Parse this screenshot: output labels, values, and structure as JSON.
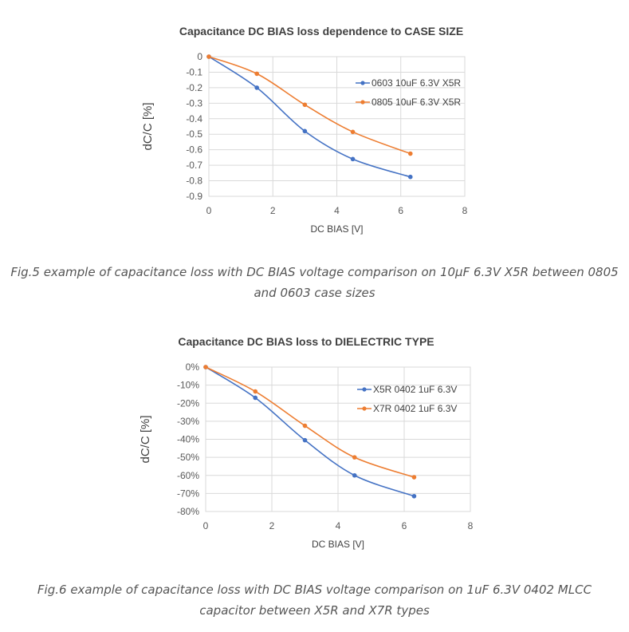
{
  "chart_data": [
    {
      "type": "line",
      "title": "Capacitance DC BIAS loss dependence to CASE SIZE",
      "xlabel": "DC BIAS [V]",
      "ylabel": "dC/C [%]",
      "xlim": [
        0,
        8
      ],
      "ylim": [
        -0.9,
        0
      ],
      "xticks": [
        "0",
        "2",
        "4",
        "6",
        "8"
      ],
      "yticks": [
        "0",
        "-0.1",
        "-0.2",
        "-0.3",
        "-0.4",
        "-0.5",
        "-0.6",
        "-0.7",
        "-0.8",
        "-0.9"
      ],
      "grid": true,
      "legend_position": "right",
      "series": [
        {
          "name": "0603 10uF 6.3V X5R",
          "color": "#4472C4",
          "x": [
            0,
            1.5,
            3,
            4.5,
            6.3
          ],
          "y": [
            0,
            -0.2,
            -0.48,
            -0.66,
            -0.775
          ]
        },
        {
          "name": "0805 10uF 6.3V X5R",
          "color": "#ED7D31",
          "x": [
            0,
            1.5,
            3,
            4.5,
            6.3
          ],
          "y": [
            0,
            -0.11,
            -0.31,
            -0.485,
            -0.625
          ]
        }
      ]
    },
    {
      "type": "line",
      "title": "Capacitance DC BIAS loss to DIELECTRIC TYPE",
      "xlabel": "DC BIAS [V]",
      "ylabel": "dC/C [%]",
      "xlim": [
        0,
        8
      ],
      "ylim": [
        -80,
        0
      ],
      "xticks": [
        "0",
        "2",
        "4",
        "6",
        "8"
      ],
      "yticks": [
        "0%",
        "-10%",
        "-20%",
        "-30%",
        "-40%",
        "-50%",
        "-60%",
        "-70%",
        "-80%"
      ],
      "grid": true,
      "legend_position": "right",
      "series": [
        {
          "name": "X5R 0402 1uF 6.3V",
          "color": "#4472C4",
          "x": [
            0,
            1.5,
            3,
            4.5,
            6.3
          ],
          "y": [
            0,
            -17,
            -40.5,
            -60,
            -71.5
          ]
        },
        {
          "name": "X7R 0402 1uF 6.3V",
          "color": "#ED7D31",
          "x": [
            0,
            1.5,
            3,
            4.5,
            6.3
          ],
          "y": [
            0,
            -13.5,
            -32.5,
            -50,
            -61
          ]
        }
      ]
    }
  ],
  "captions": {
    "fig5": "Fig.5 example of capacitance loss with DC BIAS voltage comparison on 10µF 6.3V X5R between 0805 and 0603 case sizes",
    "fig6": "Fig.6 example of capacitance loss with DC BIAS voltage comparison on 1uF 6.3V 0402 MLCC capacitor between X5R and X7R types"
  }
}
